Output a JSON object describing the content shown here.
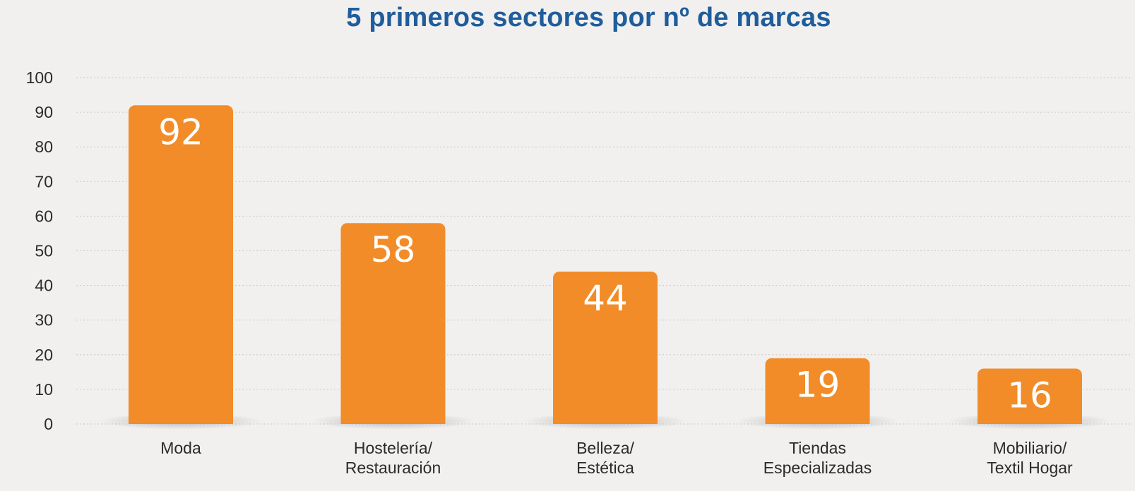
{
  "chart_data": {
    "type": "bar",
    "title": "5 primeros sectores por nº de marcas",
    "xlabel": "",
    "ylabel": "",
    "categories": [
      [
        "Moda"
      ],
      [
        "Hostelería/",
        "Restauración"
      ],
      [
        "Belleza/",
        "Estética"
      ],
      [
        "Tiendas",
        "Especializadas"
      ],
      [
        "Mobiliario/",
        "Textil Hogar"
      ]
    ],
    "values": [
      92,
      58,
      44,
      19,
      16
    ],
    "ylim": [
      0,
      100
    ],
    "yticks": [
      0,
      10,
      20,
      30,
      40,
      50,
      60,
      70,
      80,
      90,
      100
    ],
    "grid": true,
    "legend": "none",
    "colors": {
      "bar": "#f28c28",
      "title": "#1f5d9c",
      "grid": "#c9c9c9",
      "background": "#f1f0ef"
    }
  }
}
